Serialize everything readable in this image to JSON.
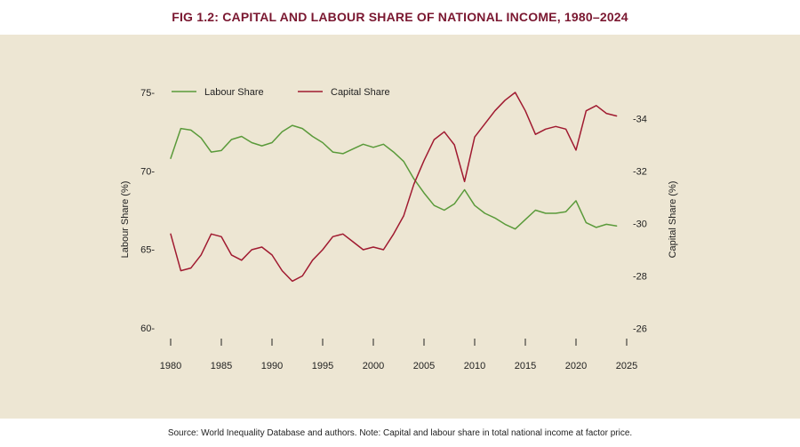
{
  "figure": {
    "title": "FIG 1.2: CAPITAL AND LABOUR SHARE OF NATIONAL INCOME, 1980–2024",
    "source": "Source: World Inequality Database and authors. Note: Capital and labour share in total national income at factor price."
  },
  "colors": {
    "title": "#7a1730",
    "panel_bg": "#ede6d3",
    "labour": "#5a9a3a",
    "capital": "#a01a30"
  },
  "chart_data": {
    "type": "line",
    "title": "FIG 1.2: CAPITAL AND LABOUR SHARE OF NATIONAL INCOME, 1980–2024",
    "xlabel": "",
    "xlim": [
      1980,
      2025
    ],
    "x_ticks": [
      1980,
      1985,
      1990,
      1995,
      2000,
      2005,
      2010,
      2015,
      2020,
      2025
    ],
    "left_axis": {
      "label": "Labour Share (%)",
      "ylim": [
        60,
        75
      ],
      "ticks": [
        60,
        65,
        70,
        75
      ],
      "tick_labels": [
        "60-",
        "65-",
        "70-",
        "75-"
      ]
    },
    "right_axis": {
      "label": "Capital Share (%)",
      "ylim": [
        25,
        35
      ],
      "ticks": [
        26,
        28,
        30,
        32,
        34
      ],
      "tick_labels": [
        "-26",
        "-28",
        "-30",
        "-32",
        "-34"
      ]
    },
    "legend": {
      "position": "top-left"
    },
    "x": [
      1980,
      1981,
      1982,
      1983,
      1984,
      1985,
      1986,
      1987,
      1988,
      1989,
      1990,
      1991,
      1992,
      1993,
      1994,
      1995,
      1996,
      1997,
      1998,
      1999,
      2000,
      2001,
      2002,
      2003,
      2004,
      2005,
      2006,
      2007,
      2008,
      2009,
      2010,
      2011,
      2012,
      2013,
      2014,
      2015,
      2016,
      2017,
      2018,
      2019,
      2020,
      2021,
      2022,
      2023,
      2024
    ],
    "series": [
      {
        "name": "Labour Share",
        "axis": "left",
        "values": [
          70.8,
          72.7,
          72.6,
          72.1,
          71.2,
          71.3,
          72.0,
          72.2,
          71.8,
          71.6,
          71.8,
          72.5,
          72.9,
          72.7,
          72.2,
          71.8,
          71.2,
          71.1,
          71.4,
          71.7,
          71.5,
          71.7,
          71.2,
          70.6,
          69.5,
          68.6,
          67.8,
          67.5,
          67.9,
          68.8,
          67.8,
          67.3,
          67.0,
          66.6,
          66.3,
          66.9,
          67.5,
          67.3,
          67.3,
          67.4,
          68.1,
          66.7,
          66.4,
          66.6,
          66.5
        ]
      },
      {
        "name": "Capital Share",
        "axis": "right",
        "values": [
          29.6,
          28.2,
          28.3,
          28.8,
          29.6,
          29.5,
          28.8,
          28.6,
          29.0,
          29.1,
          28.8,
          28.2,
          27.8,
          28.0,
          28.6,
          29.0,
          29.5,
          29.6,
          29.3,
          29.0,
          29.1,
          29.0,
          29.6,
          30.3,
          31.5,
          32.4,
          33.2,
          33.5,
          33.0,
          31.6,
          33.3,
          33.8,
          34.3,
          34.7,
          35.0,
          34.3,
          33.4,
          33.6,
          33.7,
          33.6,
          32.8,
          34.3,
          34.5,
          34.2,
          34.1
        ]
      }
    ]
  }
}
